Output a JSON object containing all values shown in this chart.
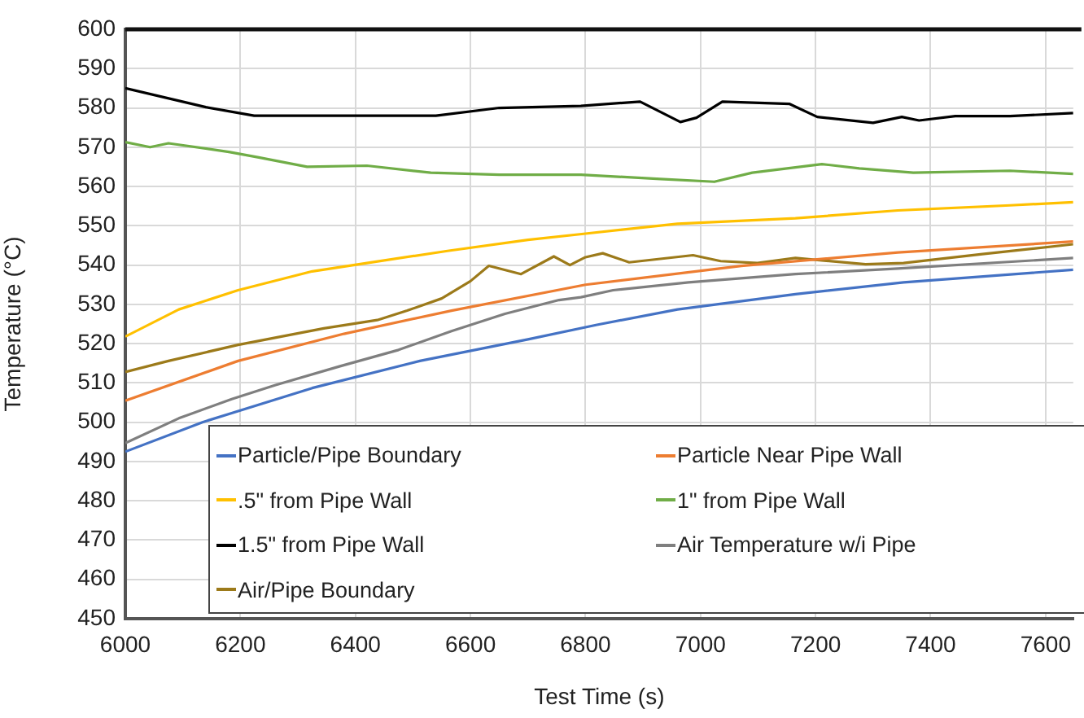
{
  "chart_data": {
    "type": "line",
    "xlabel": "Test Time (s)",
    "ylabel": "Temperature (°C)",
    "xlim": [
      6000,
      7648
    ],
    "xticks": [
      6000,
      6200,
      6400,
      6600,
      6800,
      7000,
      7200,
      7400,
      7600
    ],
    "ylim": [
      450,
      600
    ],
    "yticks": [
      450,
      460,
      470,
      480,
      490,
      500,
      510,
      520,
      530,
      540,
      550,
      560,
      570,
      580,
      590,
      600
    ],
    "grid": true,
    "legend": "bottom",
    "marker": "none",
    "line_style": "solid",
    "series": [
      {
        "name": "Particle/Pipe Boundary",
        "color": "#4472c4",
        "x": [
          6000,
          6134,
          6325,
          6512,
          6700,
          6820,
          6960,
          7165,
          7353,
          7648
        ],
        "values": [
          492.5,
          500,
          508.7,
          515.6,
          521.1,
          524.8,
          528.7,
          532.6,
          535.6,
          538.8
        ]
      },
      {
        "name": "Particle Near Pipe Wall",
        "color": "#ed7d31",
        "x": [
          6000,
          6196,
          6380,
          6567,
          6800,
          7071,
          7343,
          7648
        ],
        "values": [
          505.5,
          515.6,
          522.5,
          528.4,
          535,
          539.8,
          543.2,
          546
        ]
      },
      {
        "name": ".5\" from Pipe Wall",
        "color": "#ffc000",
        "x": [
          6000,
          6093,
          6196,
          6325,
          6420,
          6560,
          6700,
          6800,
          6960,
          7165,
          7343,
          7538,
          7648
        ],
        "values": [
          521.8,
          528.7,
          533.6,
          538.4,
          540.5,
          543.6,
          546.4,
          548,
          550.5,
          551.9,
          553.9,
          555.2,
          556
        ]
      },
      {
        "name": "1\" from Pipe Wall",
        "color": "#70ad47",
        "x": [
          6000,
          6043,
          6075,
          6180,
          6232,
          6316,
          6420,
          6531,
          6650,
          6792,
          6930,
          7024,
          7090,
          7211,
          7276,
          7370,
          7538,
          7648
        ],
        "values": [
          571.3,
          570,
          571,
          568.8,
          567.4,
          565,
          565.3,
          563.5,
          563,
          563,
          561.9,
          561.2,
          563.5,
          565.7,
          564.6,
          563.5,
          564,
          563.2
        ]
      },
      {
        "name": "1.5\" from Pipe Wall",
        "color": "#000000",
        "x": [
          6000,
          6140,
          6224,
          6325,
          6420,
          6540,
          6650,
          6792,
          6895,
          6965,
          6993,
          7038,
          7155,
          7203,
          7300,
          7350,
          7380,
          7443,
          7538,
          7648
        ],
        "values": [
          585,
          580.2,
          578,
          578,
          578,
          578,
          580,
          580.5,
          581.6,
          576.4,
          577.5,
          581.6,
          581,
          577.7,
          576.2,
          577.7,
          576.8,
          577.9,
          577.9,
          578.7
        ]
      },
      {
        "name": "Air Temperature w/i Pipe",
        "color": "#7f7f7f",
        "x": [
          6000,
          6093,
          6185,
          6260,
          6372,
          6475,
          6567,
          6660,
          6754,
          6792,
          6848,
          6979,
          7165,
          7343,
          7648
        ],
        "values": [
          494.7,
          501,
          505.9,
          509.4,
          514.2,
          518.4,
          523.2,
          527.6,
          531.1,
          531.8,
          533.6,
          535.6,
          537.7,
          539.1,
          541.8
        ]
      },
      {
        "name": "Air/Pipe Boundary",
        "color": "#9c7a1a",
        "x": [
          6000,
          6075,
          6196,
          6345,
          6438,
          6490,
          6550,
          6600,
          6632,
          6688,
          6745,
          6773,
          6800,
          6830,
          6876,
          6987,
          7035,
          7099,
          7165,
          7287,
          7353,
          7490,
          7648
        ],
        "values": [
          512.8,
          515.6,
          519.7,
          523.9,
          526,
          528.4,
          531.5,
          535.9,
          539.8,
          537.7,
          542.2,
          540,
          542,
          543,
          540.7,
          542.5,
          541,
          540.5,
          541.8,
          540.2,
          540.5,
          542.8,
          545.3
        ]
      }
    ]
  }
}
